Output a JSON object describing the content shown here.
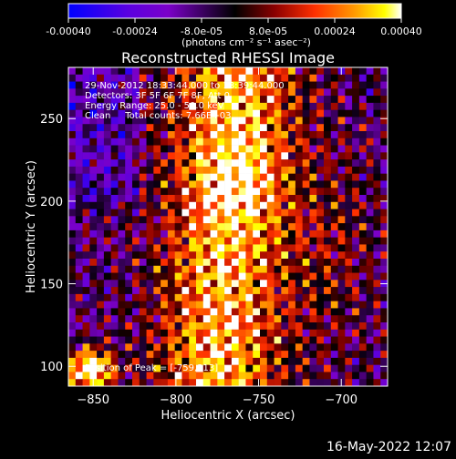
{
  "colorbar": {
    "tick_labels": [
      "-0.00040",
      "-0.00024",
      "-8.0e-05",
      "8.0e-05",
      "0.00024",
      "0.00040"
    ],
    "tick_values": [
      -0.0004,
      -0.00024,
      -8e-05,
      8e-05,
      0.00024,
      0.0004
    ],
    "range": [
      -0.0004,
      0.0004
    ],
    "unit_label": "(photons cm⁻² s⁻¹ asec⁻²)",
    "colors": [
      "#0000ff",
      "#7b00c8",
      "#000000",
      "#8b0000",
      "#ff3000",
      "#ff9a00",
      "#ffff00",
      "#ffffff"
    ]
  },
  "chart_data": {
    "type": "heatmap",
    "title": "Reconstructed RHESSI Image",
    "xlabel": "Heliocentric X (arcsec)",
    "ylabel": "Heliocentric Y (arcsec)",
    "xlim": [
      -865,
      -672
    ],
    "ylim": [
      88,
      281
    ],
    "xticks": [
      -850,
      -800,
      -750,
      -700
    ],
    "yticks": [
      100,
      150,
      200,
      250
    ],
    "grid": false,
    "annotations": [
      "29-Nov-2012 18:33:44.000 to 18:39:44.000",
      "Detectors: 3F 5F 6F 7F 8F, Att 0",
      "Energy Range: 25.0 - 50.0 keV",
      "Clean     Total counts: 7.66E+03"
    ],
    "peak_label": "Position of Peak = [-759,213]",
    "peak_position": [
      -759,
      213
    ],
    "total_counts": 7660,
    "energy_range_kev": [
      25.0,
      50.0
    ]
  },
  "footer": {
    "timestamp": "16-May-2022 12:07"
  }
}
